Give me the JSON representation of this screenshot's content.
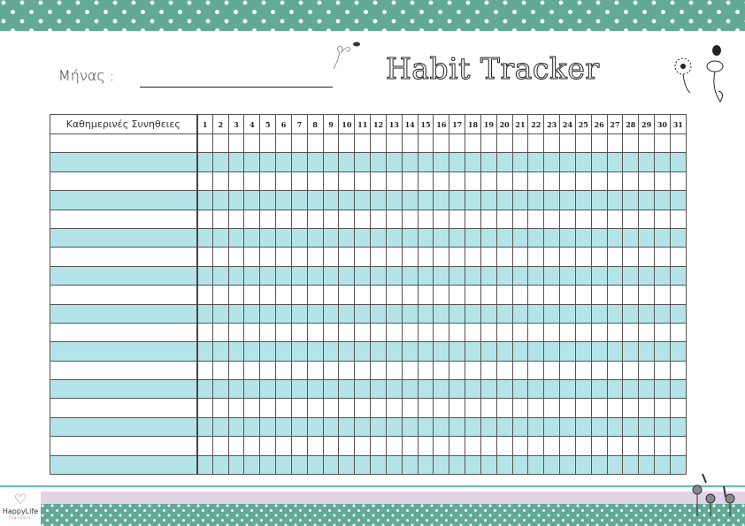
{
  "header": {
    "month_label": "Μήνας :",
    "title": "Habit Tracker"
  },
  "table": {
    "habits_header": "Καθημερινές Συνηθειες",
    "days": [
      "1",
      "2",
      "3",
      "4",
      "5",
      "6",
      "7",
      "8",
      "9",
      "10",
      "11",
      "12",
      "13",
      "14",
      "15",
      "16",
      "17",
      "18",
      "19",
      "20",
      "21",
      "22",
      "23",
      "24",
      "25",
      "26",
      "27",
      "28",
      "29",
      "30",
      "31"
    ],
    "row_count": 18
  },
  "footer": {
    "brand": "HappyLife",
    "brand_sub": "Planners"
  },
  "colors": {
    "band": "#62a997",
    "row_alt": "#b5e4e8",
    "lavender": "#e3d3e8",
    "accent_line": "#56c8c5"
  }
}
